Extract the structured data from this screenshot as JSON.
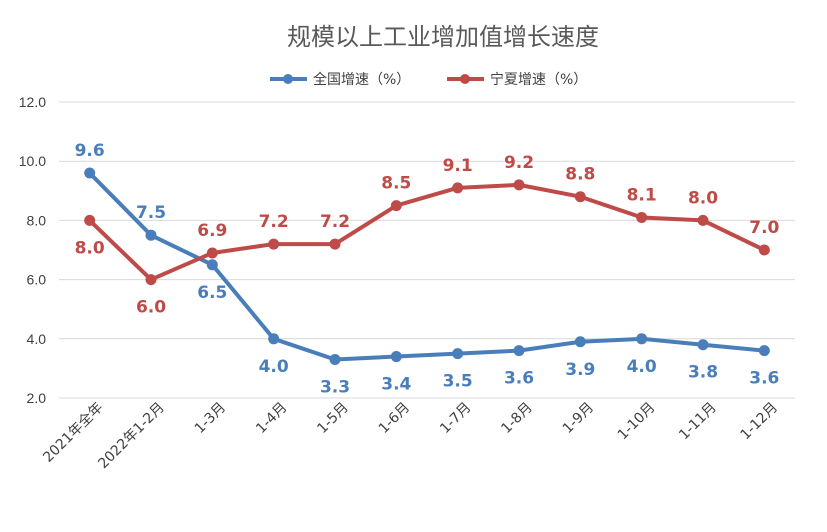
{
  "chart_data": {
    "type": "line",
    "title": "规模以上工业增加值增长速度",
    "categories": [
      "2021年全年",
      "2022年1-2月",
      "1-3月",
      "1-4月",
      "1-5月",
      "1-6月",
      "1-7月",
      "1-8月",
      "1-9月",
      "1-10月",
      "1-11月",
      "1-12月"
    ],
    "series": [
      {
        "name": "全国增速（%）",
        "color": "#4a7ebb",
        "values": [
          9.6,
          7.5,
          6.5,
          4.0,
          3.3,
          3.4,
          3.5,
          3.6,
          3.9,
          4.0,
          3.8,
          3.6
        ],
        "labels": [
          "9.6",
          "7.5",
          "6.5",
          "4.0",
          "3.3",
          "3.4",
          "3.5",
          "3.6",
          "3.9",
          "4.0",
          "3.8",
          "3.6"
        ]
      },
      {
        "name": "宁夏增速（%）",
        "color": "#be4b48",
        "values": [
          8.0,
          6.0,
          6.9,
          7.2,
          7.2,
          8.5,
          9.1,
          9.2,
          8.8,
          8.1,
          8.0,
          7.0
        ],
        "labels": [
          "8.0",
          "6.0",
          "6.9",
          "7.2",
          "7.2",
          "8.5",
          "9.1",
          "9.2",
          "8.8",
          "8.1",
          "8.0",
          "7.0"
        ]
      }
    ],
    "ylim": [
      2.0,
      12.0
    ],
    "yticks": [
      "2.0",
      "4.0",
      "6.0",
      "8.0",
      "10.0",
      "12.0"
    ],
    "grid": true,
    "legend_position": "top-center"
  }
}
